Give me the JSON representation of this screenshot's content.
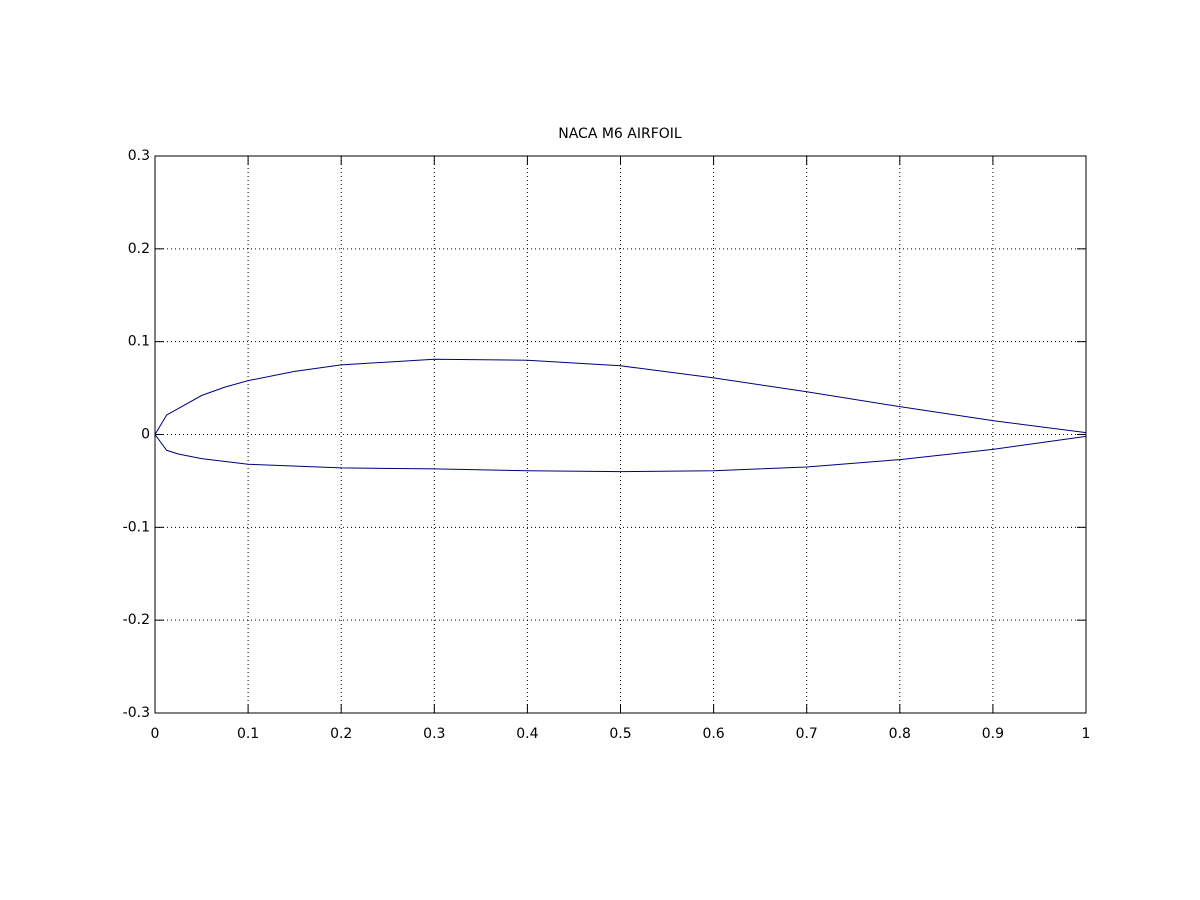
{
  "chart_data": {
    "type": "line",
    "title": "NACA M6 AIRFOIL",
    "x": [
      1,
      0.9,
      0.8,
      0.7,
      0.6,
      0.5,
      0.4,
      0.3,
      0.2,
      0.15,
      0.1,
      0.075,
      0.05,
      0.025,
      0.0125,
      0,
      0.0125,
      0.025,
      0.05,
      0.1,
      0.2,
      0.3,
      0.4,
      0.5,
      0.6,
      0.7,
      0.8,
      0.9,
      1
    ],
    "series": [
      {
        "color": "#000080",
        "values": [
          0.002,
          0.015,
          0.03,
          0.046,
          0.061,
          0.074,
          0.08,
          0.081,
          0.075,
          0.068,
          0.058,
          0.051,
          0.042,
          0.028,
          0.021,
          0,
          -0.017,
          -0.021,
          -0.026,
          -0.032,
          -0.036,
          -0.037,
          -0.039,
          -0.04,
          -0.039,
          -0.035,
          -0.027,
          -0.016,
          -0.002
        ]
      }
    ],
    "xlim": [
      0,
      1
    ],
    "xticks": [
      0,
      0.1,
      0.2,
      0.3,
      0.4,
      0.5,
      0.6,
      0.7,
      0.8,
      0.9,
      1
    ],
    "ylim": [
      -0.3,
      0.3
    ],
    "yticks": [
      -0.3,
      -0.2,
      -0.1,
      0,
      0.1,
      0.2,
      0.3
    ],
    "grid": true
  }
}
